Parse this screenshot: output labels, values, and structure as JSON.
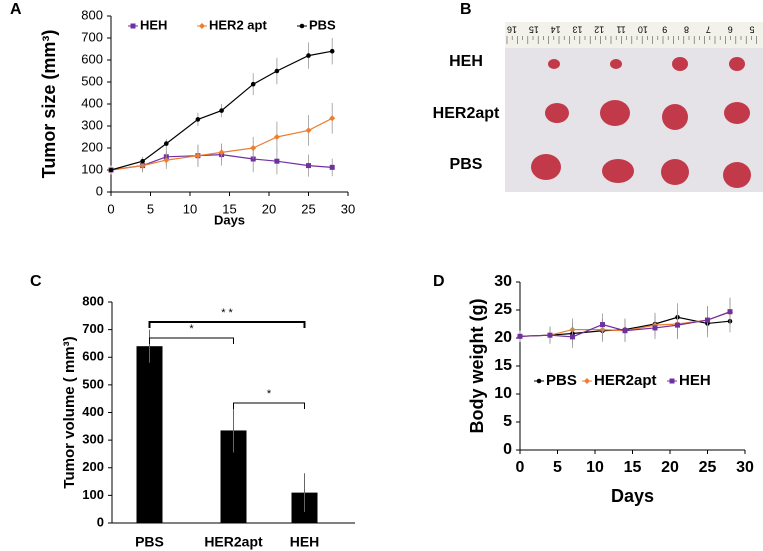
{
  "chart_data": [
    {
      "type": "line",
      "label": "A",
      "ylabel": "Tumor size (mm³)",
      "xlabel": "Days",
      "x": [
        0,
        4,
        7,
        11,
        14,
        18,
        21,
        25,
        28
      ],
      "series": [
        {
          "name": "HEH",
          "color": "#7030a0",
          "marker": "square",
          "values": [
            100,
            120,
            160,
            165,
            170,
            150,
            140,
            120,
            112
          ],
          "errors": [
            20,
            30,
            40,
            50,
            50,
            60,
            60,
            50,
            40
          ]
        },
        {
          "name": "HER2 apt",
          "color": "#ed7d31",
          "marker": "diamond",
          "values": [
            100,
            120,
            145,
            165,
            180,
            200,
            250,
            280,
            335
          ],
          "errors": [
            20,
            30,
            40,
            50,
            40,
            50,
            70,
            70,
            70
          ]
        },
        {
          "name": "PBS",
          "color": "#000000",
          "marker": "circle",
          "values": [
            100,
            140,
            220,
            330,
            370,
            490,
            550,
            620,
            640
          ],
          "errors": [
            20,
            20,
            20,
            30,
            30,
            50,
            60,
            60,
            60
          ]
        }
      ],
      "xlim": [
        0,
        30
      ],
      "xticks": [
        0,
        5,
        10,
        15,
        20,
        25,
        30
      ],
      "ylim": [
        0,
        800
      ],
      "yticks": [
        0,
        100,
        200,
        300,
        400,
        500,
        600,
        700,
        800
      ],
      "legend": "top"
    },
    {
      "type": "bar",
      "label": "C",
      "ylabel": "Tumor volume ( mm³)",
      "categories": [
        "PBS",
        "HER2apt",
        "HEH"
      ],
      "values": [
        640,
        335,
        110
      ],
      "errors": [
        60,
        80,
        70
      ],
      "color": "#000000",
      "ylim": [
        0,
        800
      ],
      "yticks": [
        0,
        100,
        200,
        300,
        400,
        500,
        600,
        700,
        800
      ],
      "annotations": [
        "* *",
        "*",
        "*"
      ]
    },
    {
      "type": "line",
      "label": "D",
      "ylabel": "Body weight (g)",
      "xlabel": "Days",
      "x": [
        0,
        4,
        7,
        11,
        14,
        18,
        21,
        25,
        28
      ],
      "series": [
        {
          "name": "PBS",
          "color": "#000000",
          "marker": "circle",
          "values": [
            20.3,
            20.5,
            20.8,
            21.3,
            21.5,
            22.5,
            23.7,
            22.6,
            23.0
          ],
          "errors": [
            1,
            1.5,
            2,
            2,
            2,
            2,
            2.5,
            2.5,
            2
          ]
        },
        {
          "name": "HER2apt",
          "color": "#ed7d31",
          "marker": "diamond",
          "values": [
            20.3,
            20.5,
            21.5,
            21.5,
            21.3,
            22.3,
            22.5,
            23.2,
            24.6
          ],
          "errors": [
            1,
            1.5,
            2,
            2,
            2,
            2,
            2.5,
            2.5,
            2.5
          ]
        },
        {
          "name": "HEH",
          "color": "#7030a0",
          "marker": "square",
          "values": [
            20.3,
            20.5,
            20.2,
            22.4,
            21.3,
            21.8,
            22.3,
            23.2,
            24.7
          ],
          "errors": [
            1,
            1.5,
            2,
            2,
            2,
            2,
            2.5,
            2.5,
            2.5
          ]
        }
      ],
      "xlim": [
        0,
        30
      ],
      "xticks": [
        0,
        5,
        10,
        15,
        20,
        25,
        30
      ],
      "ylim": [
        0,
        30
      ],
      "yticks": [
        0,
        5,
        10,
        15,
        20,
        25,
        30
      ],
      "legend": "center"
    }
  ],
  "photo": {
    "label": "B",
    "row_labels": [
      "HEH",
      "HER2apt",
      "PBS"
    ],
    "ruler_labels": [
      "16",
      "15",
      "14",
      "13",
      "12",
      "11",
      "10",
      "9",
      "8",
      "7",
      "6",
      "5"
    ]
  }
}
